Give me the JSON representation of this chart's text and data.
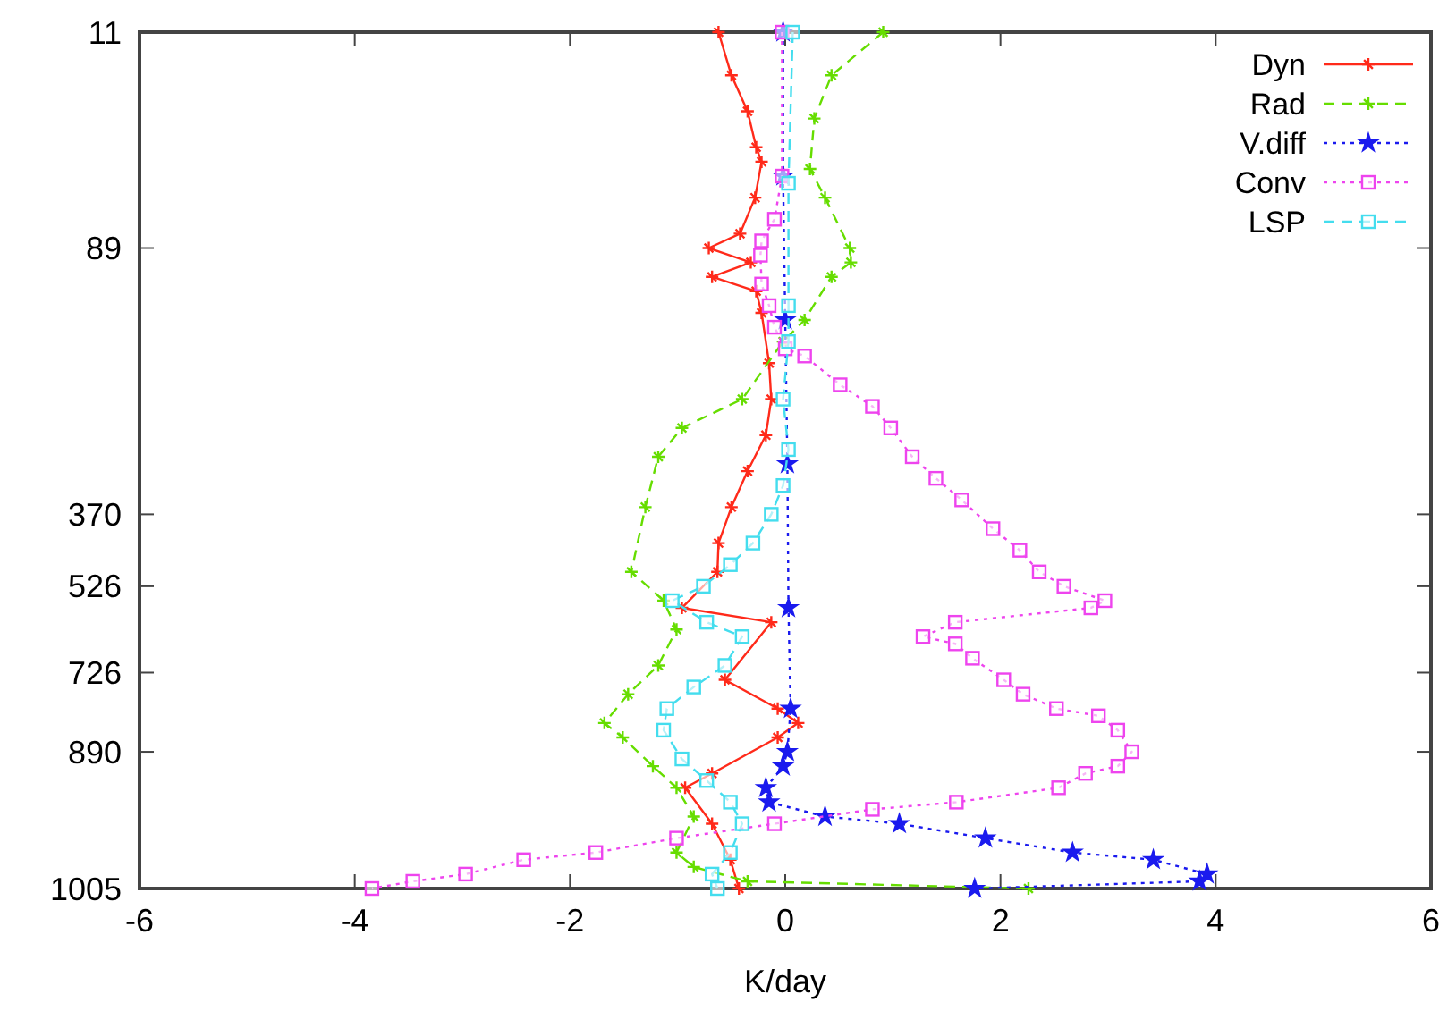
{
  "chart_data": {
    "type": "line",
    "orientation": "horizontal",
    "xlabel": "K/day",
    "xlim": [
      -6,
      6
    ],
    "xticks": [
      -6,
      -4,
      -2,
      0,
      2,
      4,
      6
    ],
    "grid": false,
    "legend": "top right",
    "categories": [
      "11",
      null,
      null,
      null,
      null,
      null,
      null,
      null,
      null,
      null,
      null,
      null,
      null,
      null,
      null,
      null,
      null,
      null,
      null,
      null,
      null,
      null,
      null,
      null,
      null,
      null,
      null,
      null,
      null,
      null,
      "89",
      null,
      null,
      null,
      null,
      null,
      null,
      null,
      null,
      null,
      null,
      null,
      null,
      null,
      null,
      null,
      null,
      null,
      null,
      null,
      null,
      null,
      null,
      null,
      null,
      null,
      null,
      null,
      null,
      null,
      null,
      null,
      null,
      null,
      null,
      null,
      null,
      "370",
      null,
      null,
      null,
      null,
      null,
      null,
      null,
      null,
      null,
      "526",
      null,
      null,
      null,
      null,
      null,
      null,
      null,
      null,
      null,
      null,
      null,
      "726",
      null,
      null,
      null,
      null,
      null,
      null,
      null,
      null,
      null,
      null,
      "890",
      null,
      null,
      null,
      null,
      null,
      null,
      null,
      null,
      null,
      null,
      null,
      null,
      null,
      null,
      null,
      null,
      null,
      null,
      "1005"
    ],
    "series": [
      {
        "name": "Dyn",
        "color": "#ff2a1a",
        "marker": "cross",
        "line_style": "solid",
        "values": [
          -0.62,
          null,
          null,
          null,
          null,
          null,
          -0.5,
          null,
          null,
          null,
          null,
          -0.35,
          null,
          null,
          null,
          null,
          -0.27,
          null,
          -0.22,
          null,
          null,
          null,
          null,
          -0.28,
          null,
          null,
          null,
          null,
          -0.42,
          null,
          -0.71,
          null,
          -0.32,
          null,
          -0.68,
          null,
          -0.27,
          null,
          null,
          -0.22,
          null,
          null,
          null,
          null,
          null,
          null,
          -0.15,
          null,
          null,
          null,
          null,
          -0.13,
          null,
          null,
          null,
          null,
          -0.18,
          null,
          null,
          null,
          null,
          -0.35,
          null,
          null,
          null,
          null,
          -0.5,
          null,
          null,
          null,
          null,
          -0.62,
          null,
          null,
          null,
          -0.63,
          null,
          null,
          null,
          null,
          -0.96,
          null,
          -0.13,
          null,
          null,
          null,
          null,
          null,
          null,
          null,
          -0.56,
          null,
          null,
          null,
          -0.07,
          null,
          0.12,
          null,
          -0.07,
          null,
          null,
          null,
          null,
          -0.68,
          null,
          -0.93,
          null,
          null,
          null,
          null,
          -0.68,
          null,
          null,
          null,
          null,
          -0.51,
          null,
          null,
          null,
          -0.43
        ]
      },
      {
        "name": "Rad",
        "color": "#66dd00",
        "marker": "cross",
        "line_style": "dashed",
        "values": [
          0.91,
          null,
          null,
          null,
          null,
          null,
          0.43,
          null,
          null,
          null,
          null,
          null,
          0.27,
          null,
          null,
          null,
          null,
          null,
          null,
          0.23,
          null,
          null,
          null,
          0.37,
          null,
          null,
          null,
          null,
          null,
          null,
          0.6,
          null,
          0.61,
          null,
          0.43,
          null,
          null,
          null,
          null,
          null,
          0.18,
          null,
          null,
          -0.02,
          null,
          null,
          null,
          null,
          null,
          null,
          null,
          -0.4,
          null,
          null,
          null,
          -0.96,
          null,
          null,
          null,
          -1.18,
          null,
          null,
          null,
          null,
          null,
          null,
          -1.3,
          null,
          null,
          null,
          null,
          null,
          null,
          null,
          null,
          -1.43,
          null,
          null,
          null,
          -1.13,
          null,
          null,
          null,
          -1.01,
          null,
          null,
          null,
          null,
          -1.18,
          null,
          null,
          null,
          -1.46,
          null,
          null,
          null,
          -1.68,
          null,
          -1.51,
          null,
          null,
          null,
          -1.23,
          null,
          null,
          -1.01,
          null,
          null,
          null,
          -0.85,
          null,
          null,
          null,
          null,
          -1.01,
          null,
          -0.85,
          null,
          -0.35,
          2.26
        ]
      },
      {
        "name": "V.diff",
        "color": "#1a1aee",
        "marker": "star",
        "line_style": "dotted",
        "values": [
          -0.02,
          null,
          null,
          null,
          null,
          null,
          null,
          null,
          null,
          null,
          null,
          null,
          null,
          null,
          null,
          null,
          null,
          null,
          null,
          null,
          -0.02,
          null,
          null,
          null,
          null,
          null,
          null,
          null,
          null,
          null,
          null,
          null,
          null,
          null,
          null,
          null,
          null,
          null,
          null,
          null,
          0,
          null,
          null,
          null,
          null,
          null,
          null,
          null,
          null,
          null,
          null,
          null,
          null,
          null,
          null,
          null,
          null,
          null,
          null,
          null,
          0.02,
          null,
          null,
          null,
          null,
          null,
          null,
          null,
          null,
          null,
          null,
          null,
          null,
          null,
          null,
          null,
          null,
          null,
          null,
          null,
          0.03,
          null,
          null,
          null,
          null,
          null,
          null,
          null,
          null,
          null,
          null,
          null,
          null,
          null,
          0.05,
          null,
          null,
          null,
          null,
          null,
          0.02,
          null,
          -0.02,
          null,
          null,
          -0.18,
          null,
          -0.15,
          null,
          0.37,
          1.06,
          null,
          1.86,
          null,
          2.67,
          3.42,
          null,
          3.92,
          3.85,
          1.76
        ]
      },
      {
        "name": "Conv",
        "color": "#ee44ee",
        "marker": "square",
        "line_style": "dotted",
        "values": [
          -0.03,
          null,
          null,
          null,
          null,
          null,
          null,
          null,
          null,
          null,
          null,
          null,
          null,
          null,
          null,
          null,
          null,
          null,
          null,
          null,
          -0.03,
          null,
          null,
          null,
          null,
          null,
          -0.1,
          null,
          null,
          -0.22,
          null,
          -0.23,
          null,
          null,
          null,
          -0.22,
          null,
          null,
          -0.15,
          null,
          null,
          -0.1,
          null,
          null,
          0,
          0.18,
          null,
          null,
          null,
          0.51,
          null,
          null,
          0.81,
          null,
          null,
          0.98,
          null,
          null,
          null,
          1.18,
          null,
          null,
          1.4,
          null,
          null,
          1.64,
          null,
          null,
          null,
          1.93,
          null,
          null,
          2.18,
          null,
          null,
          2.36,
          null,
          2.59,
          null,
          2.97,
          2.84,
          null,
          1.58,
          null,
          1.28,
          1.58,
          null,
          1.74,
          null,
          null,
          2.03,
          null,
          2.21,
          null,
          2.52,
          2.91,
          null,
          3.09,
          null,
          null,
          3.22,
          null,
          3.09,
          2.79,
          null,
          2.54,
          null,
          1.59,
          0.81,
          null,
          -0.1,
          null,
          -1.01,
          null,
          -1.76,
          -2.43,
          null,
          -2.97,
          -3.46,
          -3.84
        ]
      },
      {
        "name": "LSP",
        "color": "#44ddee",
        "marker": "square",
        "line_style": "dashed",
        "values": [
          0.07,
          null,
          null,
          null,
          null,
          null,
          null,
          null,
          null,
          null,
          null,
          null,
          null,
          null,
          null,
          null,
          null,
          null,
          null,
          null,
          null,
          0.03,
          null,
          null,
          null,
          null,
          null,
          null,
          null,
          null,
          null,
          null,
          null,
          null,
          null,
          null,
          null,
          null,
          0.03,
          null,
          null,
          null,
          null,
          0.03,
          null,
          null,
          null,
          null,
          null,
          null,
          null,
          -0.02,
          null,
          null,
          null,
          null,
          null,
          null,
          0.03,
          null,
          null,
          null,
          null,
          -0.02,
          null,
          null,
          null,
          -0.13,
          null,
          null,
          null,
          -0.3,
          null,
          null,
          -0.51,
          null,
          null,
          -0.76,
          null,
          -1.05,
          null,
          null,
          -0.73,
          null,
          -0.4,
          null,
          null,
          null,
          -0.56,
          null,
          null,
          -0.85,
          null,
          null,
          -1.1,
          null,
          null,
          -1.13,
          null,
          null,
          null,
          -0.96,
          null,
          null,
          -0.73,
          null,
          null,
          -0.51,
          null,
          null,
          -0.4,
          null,
          null,
          null,
          -0.51,
          null,
          null,
          -0.68,
          null,
          -0.63
        ]
      }
    ]
  }
}
